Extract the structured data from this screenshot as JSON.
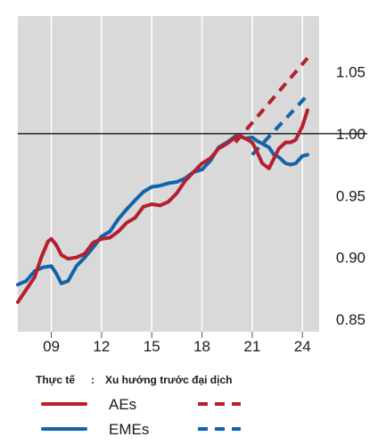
{
  "chart_data": {
    "type": "line",
    "x_ticks": [
      "09",
      "12",
      "15",
      "18",
      "21",
      "24"
    ],
    "y_ticks": [
      "0.85",
      "0.90",
      "0.95",
      "1.00",
      "1.05"
    ],
    "xlim": [
      2007,
      2025
    ],
    "ylim": [
      0.84,
      1.095
    ],
    "reference_line": 1.0,
    "grid": "vertical",
    "y_axis_side": "right",
    "legend_placement": "bottom",
    "legend": {
      "header_actual": "Thực tế",
      "header_trend": "Xu hướng trước đại dịch"
    },
    "colors": {
      "AEs": "#b51f2e",
      "EMEs": "#1264a8",
      "plot_background": "#d9d9d9",
      "gridline": "#ffffff",
      "reference_line": "#000000"
    },
    "series": [
      {
        "name": "AEs",
        "style": "actual",
        "x": [
          2007.0,
          2007.5,
          2008.0,
          2008.4,
          2008.8,
          2009.0,
          2009.3,
          2009.6,
          2010.0,
          2010.5,
          2011.0,
          2011.5,
          2012.0,
          2012.5,
          2013.0,
          2013.5,
          2014.0,
          2014.5,
          2015.0,
          2015.5,
          2016.0,
          2016.5,
          2017.0,
          2017.5,
          2018.0,
          2018.5,
          2019.0,
          2019.5,
          2020.0,
          2020.3,
          2020.6,
          2021.0,
          2021.3,
          2021.6,
          2022.0,
          2022.3,
          2022.6,
          2023.0,
          2023.3,
          2023.6,
          2024.0,
          2024.3
        ],
        "y": [
          0.864,
          0.874,
          0.884,
          0.9,
          0.913,
          0.915,
          0.91,
          0.902,
          0.899,
          0.9,
          0.903,
          0.912,
          0.915,
          0.916,
          0.921,
          0.928,
          0.932,
          0.941,
          0.943,
          0.942,
          0.945,
          0.952,
          0.962,
          0.969,
          0.976,
          0.98,
          0.988,
          0.992,
          0.997,
          0.998,
          0.996,
          0.993,
          0.985,
          0.976,
          0.972,
          0.98,
          0.988,
          0.993,
          0.993,
          0.995,
          1.006,
          1.019
        ]
      },
      {
        "name": "EMEs",
        "style": "actual",
        "x": [
          2007.0,
          2007.5,
          2008.0,
          2008.5,
          2009.0,
          2009.3,
          2009.6,
          2010.0,
          2010.5,
          2011.0,
          2011.5,
          2012.0,
          2012.5,
          2013.0,
          2013.5,
          2014.0,
          2014.5,
          2015.0,
          2015.5,
          2016.0,
          2016.5,
          2017.0,
          2017.5,
          2018.0,
          2018.5,
          2019.0,
          2019.5,
          2020.0,
          2020.3,
          2020.6,
          2021.0,
          2021.3,
          2021.6,
          2022.0,
          2022.3,
          2022.6,
          2023.0,
          2023.3,
          2023.6,
          2024.0,
          2024.3
        ],
        "y": [
          0.878,
          0.881,
          0.889,
          0.892,
          0.893,
          0.887,
          0.879,
          0.881,
          0.893,
          0.9,
          0.908,
          0.917,
          0.921,
          0.931,
          0.939,
          0.946,
          0.953,
          0.957,
          0.958,
          0.96,
          0.961,
          0.964,
          0.969,
          0.971,
          0.978,
          0.989,
          0.993,
          0.998,
          0.998,
          0.996,
          0.997,
          0.994,
          0.992,
          0.989,
          0.983,
          0.981,
          0.976,
          0.975,
          0.976,
          0.982,
          0.983
        ]
      },
      {
        "name": "AEs",
        "style": "trend",
        "x": [
          2020.0,
          2024.3
        ],
        "y": [
          0.993,
          1.061
        ]
      },
      {
        "name": "EMEs",
        "style": "trend",
        "x": [
          2021.0,
          2024.3
        ],
        "y": [
          0.983,
          1.031
        ]
      }
    ]
  }
}
